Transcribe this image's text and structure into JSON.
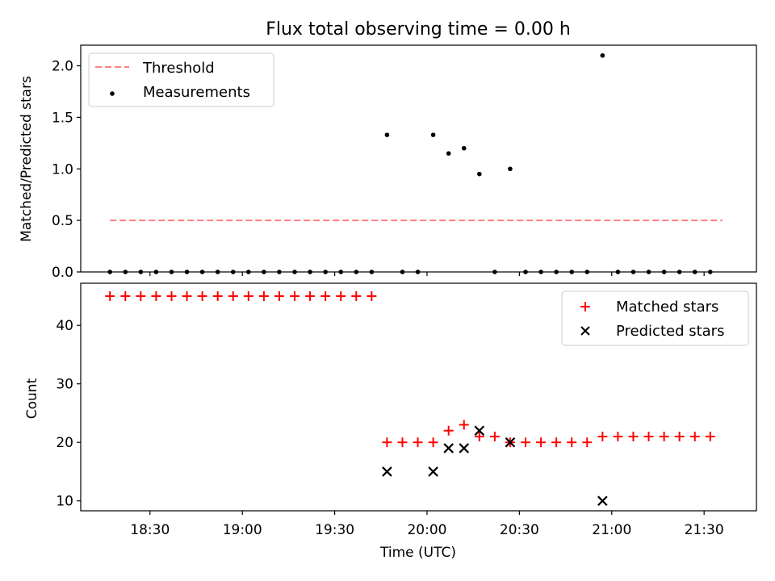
{
  "chart_data": {
    "title": "Flux total observing time = 0.00 h",
    "xlabel": "Time (UTC)",
    "x_ticks": [
      {
        "minutes": 1110,
        "label": "18:30"
      },
      {
        "minutes": 1140,
        "label": "19:00"
      },
      {
        "minutes": 1170,
        "label": "19:30"
      },
      {
        "minutes": 1200,
        "label": "20:00"
      },
      {
        "minutes": 1230,
        "label": "20:30"
      },
      {
        "minutes": 1260,
        "label": "21:00"
      },
      {
        "minutes": 1290,
        "label": "21:30"
      }
    ],
    "xlim_minutes": [
      1087.5,
      1307
    ],
    "panels": [
      {
        "type": "scatter",
        "ylabel": "Matched/Predicted stars",
        "ylim": [
          0,
          2.2
        ],
        "yticks": [
          0,
          0.5,
          1.0,
          1.5,
          2.0
        ],
        "ytick_labels": [
          "0.0",
          "0.5",
          "1.0",
          "1.5",
          "2.0"
        ],
        "legend": {
          "position": "upper-left",
          "entries": [
            {
              "label": "Threshold",
              "style": "dashed-line",
              "color": "#ff8080"
            },
            {
              "label": "Measurements",
              "style": "dot",
              "color": "#000000"
            }
          ]
        },
        "threshold": {
          "value": 0.5,
          "x_start": 1097,
          "x_end": 1296,
          "color": "#ff8080"
        },
        "series": [
          {
            "name": "Measurements",
            "color": "#000000",
            "points": [
              [
                1097,
                0
              ],
              [
                1102,
                0
              ],
              [
                1107,
                0
              ],
              [
                1112,
                0
              ],
              [
                1117,
                0
              ],
              [
                1122,
                0
              ],
              [
                1127,
                0
              ],
              [
                1132,
                0
              ],
              [
                1137,
                0
              ],
              [
                1142,
                0
              ],
              [
                1147,
                0
              ],
              [
                1152,
                0
              ],
              [
                1157,
                0
              ],
              [
                1162,
                0
              ],
              [
                1167,
                0
              ],
              [
                1172,
                0
              ],
              [
                1177,
                0
              ],
              [
                1182,
                0
              ],
              [
                1187,
                1.33
              ],
              [
                1192,
                0
              ],
              [
                1197,
                0
              ],
              [
                1202,
                1.33
              ],
              [
                1207,
                1.15
              ],
              [
                1212,
                1.2
              ],
              [
                1217,
                0.95
              ],
              [
                1222,
                0
              ],
              [
                1227,
                1.0
              ],
              [
                1232,
                0
              ],
              [
                1237,
                0
              ],
              [
                1242,
                0
              ],
              [
                1247,
                0
              ],
              [
                1252,
                0
              ],
              [
                1257,
                2.1
              ],
              [
                1262,
                0
              ],
              [
                1267,
                0
              ],
              [
                1272,
                0
              ],
              [
                1277,
                0
              ],
              [
                1282,
                0
              ],
              [
                1287,
                0
              ],
              [
                1292,
                0
              ]
            ]
          }
        ]
      },
      {
        "type": "scatter",
        "ylabel": "Count",
        "ylim": [
          8.3,
          47.2
        ],
        "yticks": [
          10,
          20,
          30,
          40
        ],
        "ytick_labels": [
          "10",
          "20",
          "30",
          "40"
        ],
        "legend": {
          "position": "upper-right",
          "entries": [
            {
              "label": "Matched stars",
              "style": "plus",
              "color": "#ff0000"
            },
            {
              "label": "Predicted stars",
              "style": "x",
              "color": "#000000"
            }
          ]
        },
        "series": [
          {
            "name": "Matched stars",
            "marker": "plus",
            "color": "#ff0000",
            "points": [
              [
                1097,
                45
              ],
              [
                1102,
                45
              ],
              [
                1107,
                45
              ],
              [
                1112,
                45
              ],
              [
                1117,
                45
              ],
              [
                1122,
                45
              ],
              [
                1127,
                45
              ],
              [
                1132,
                45
              ],
              [
                1137,
                45
              ],
              [
                1142,
                45
              ],
              [
                1147,
                45
              ],
              [
                1152,
                45
              ],
              [
                1157,
                45
              ],
              [
                1162,
                45
              ],
              [
                1167,
                45
              ],
              [
                1172,
                45
              ],
              [
                1177,
                45
              ],
              [
                1182,
                45
              ],
              [
                1187,
                20
              ],
              [
                1192,
                20
              ],
              [
                1197,
                20
              ],
              [
                1202,
                20
              ],
              [
                1207,
                22
              ],
              [
                1212,
                23
              ],
              [
                1217,
                21
              ],
              [
                1222,
                21
              ],
              [
                1227,
                20
              ],
              [
                1232,
                20
              ],
              [
                1237,
                20
              ],
              [
                1242,
                20
              ],
              [
                1247,
                20
              ],
              [
                1252,
                20
              ],
              [
                1257,
                21
              ],
              [
                1262,
                21
              ],
              [
                1267,
                21
              ],
              [
                1272,
                21
              ],
              [
                1277,
                21
              ],
              [
                1282,
                21
              ],
              [
                1287,
                21
              ],
              [
                1292,
                21
              ]
            ]
          },
          {
            "name": "Predicted stars",
            "marker": "x",
            "color": "#000000",
            "points": [
              [
                1187,
                15
              ],
              [
                1202,
                15
              ],
              [
                1207,
                19
              ],
              [
                1212,
                19
              ],
              [
                1217,
                22
              ],
              [
                1227,
                20
              ],
              [
                1257,
                10
              ]
            ]
          }
        ]
      }
    ]
  }
}
